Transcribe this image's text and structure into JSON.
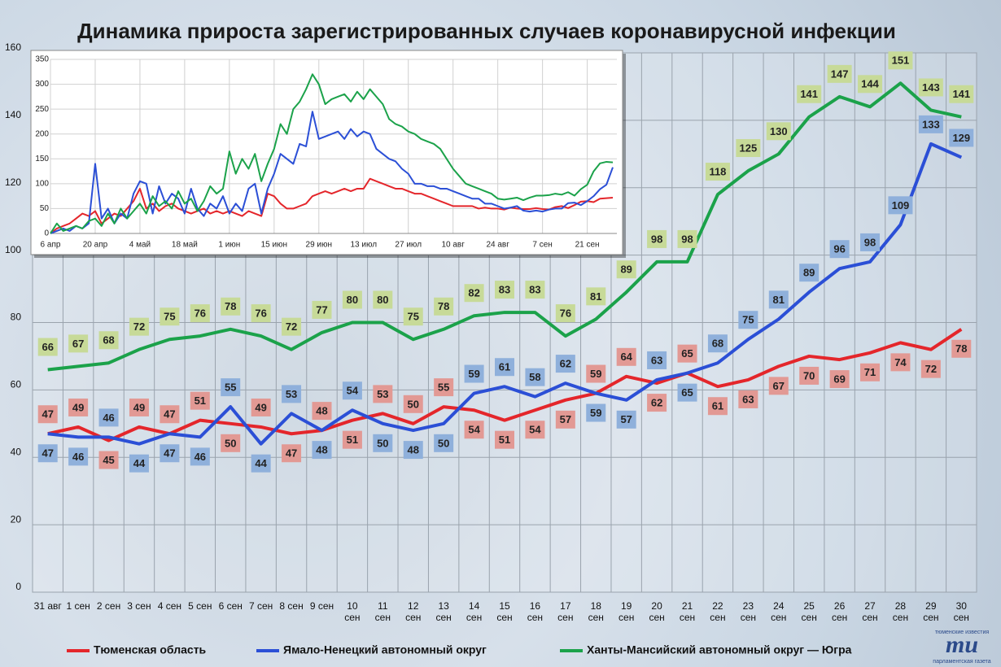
{
  "chart_data": [
    {
      "type": "line",
      "title": "Динамика прироста зарегистрированных случаев коронавирусной инфекции",
      "categories": [
        "31 авг",
        "1 сен",
        "2 сен",
        "3 сен",
        "4 сен",
        "5 сен",
        "6 сен",
        "7 сен",
        "8 сен",
        "9 сен",
        "10\nсен",
        "11\nсен",
        "12\nсен",
        "13\nсен",
        "14\nсен",
        "15\nсен",
        "16\nсен",
        "17\nсен",
        "18\nсен",
        "19\nсен",
        "20\nсен",
        "21\nсен",
        "22\nсен",
        "23\nсен",
        "24\nсен",
        "25\nсен",
        "26\nсен",
        "27\nсен",
        "28\nсен",
        "29\nсен",
        "30\nсен"
      ],
      "series": [
        {
          "name": "Тюменская область",
          "color": "#e4262b",
          "label_color": "#e29994",
          "values": [
            47,
            49,
            45,
            49,
            47,
            51,
            50,
            49,
            47,
            48,
            51,
            53,
            50,
            55,
            54,
            51,
            54,
            57,
            59,
            64,
            62,
            65,
            61,
            63,
            67,
            70,
            69,
            71,
            74,
            72,
            78
          ]
        },
        {
          "name": "Ямало-Ненецкий автономный округ",
          "color": "#2b4fd6",
          "label_color": "#8fb0db",
          "values": [
            47,
            46,
            46,
            44,
            47,
            46,
            55,
            44,
            53,
            48,
            54,
            50,
            48,
            50,
            59,
            61,
            58,
            62,
            59,
            57,
            63,
            65,
            68,
            75,
            81,
            89,
            96,
            98,
            109,
            133,
            129
          ]
        },
        {
          "name": "Ханты-Мансийский автономный округ — Югра",
          "color": "#1ba24a",
          "label_color": "#c7da98",
          "values": [
            66,
            67,
            68,
            72,
            75,
            76,
            78,
            76,
            72,
            77,
            80,
            80,
            75,
            78,
            82,
            83,
            83,
            76,
            81,
            89,
            98,
            98,
            118,
            125,
            130,
            141,
            147,
            144,
            151,
            143,
            141
          ]
        }
      ],
      "ylim": [
        0,
        160
      ],
      "yticks": [
        0,
        20,
        40,
        60,
        80,
        100,
        120,
        140,
        160
      ],
      "grid": true
    },
    {
      "type": "line",
      "x": [
        "6 апр",
        null,
        null,
        null,
        null,
        null,
        null,
        "20 апр",
        null,
        null,
        null,
        null,
        null,
        null,
        "4 май",
        null,
        null,
        null,
        null,
        null,
        null,
        "18 май",
        null,
        null,
        null,
        null,
        null,
        null,
        "1 июн",
        null,
        null,
        null,
        null,
        null,
        null,
        "15 июн",
        null,
        null,
        null,
        null,
        null,
        null,
        "29 июн",
        null,
        null,
        null,
        null,
        null,
        null,
        "13 июл",
        null,
        null,
        null,
        null,
        null,
        null,
        "27 июл",
        null,
        null,
        null,
        null,
        null,
        null,
        "10 авг",
        null,
        null,
        null,
        null,
        null,
        null,
        "24 авг",
        null,
        null,
        null,
        null,
        null,
        null,
        "7 сен",
        null,
        null,
        null,
        null,
        null,
        null,
        "21 сен",
        null,
        null,
        null,
        null
      ],
      "series": [
        {
          "color": "#e4262b",
          "values": [
            0,
            10,
            15,
            20,
            30,
            40,
            35,
            45,
            20,
            30,
            40,
            35,
            50,
            65,
            90,
            50,
            60,
            45,
            55,
            60,
            50,
            45,
            40,
            45,
            50,
            40,
            45,
            40,
            45,
            40,
            35,
            45,
            40,
            35,
            80,
            75,
            60,
            50,
            50,
            55,
            60,
            75,
            80,
            85,
            80,
            85,
            90,
            85,
            90,
            90,
            110,
            105,
            100,
            95,
            90,
            90,
            85,
            80,
            80,
            75,
            70,
            65,
            60,
            55,
            55,
            55,
            55,
            50,
            52,
            50,
            50,
            48,
            52,
            50,
            49,
            49,
            51,
            49,
            48,
            53,
            55,
            51,
            57,
            64,
            65,
            63,
            70,
            71,
            72
          ]
        },
        {
          "color": "#2b4fd6",
          "values": [
            0,
            5,
            10,
            5,
            15,
            10,
            20,
            140,
            30,
            50,
            20,
            40,
            30,
            80,
            105,
            100,
            40,
            95,
            60,
            80,
            70,
            40,
            90,
            50,
            35,
            60,
            50,
            75,
            40,
            60,
            45,
            90,
            100,
            40,
            90,
            120,
            160,
            150,
            140,
            180,
            175,
            245,
            190,
            195,
            200,
            205,
            190,
            210,
            195,
            205,
            200,
            170,
            160,
            150,
            145,
            130,
            120,
            100,
            100,
            95,
            95,
            90,
            90,
            85,
            80,
            75,
            70,
            70,
            60,
            60,
            55,
            50,
            52,
            55,
            46,
            44,
            46,
            44,
            48,
            50,
            50,
            61,
            62,
            57,
            65,
            75,
            89,
            98,
            133
          ]
        },
        {
          "color": "#1ba24a",
          "values": [
            0,
            20,
            5,
            10,
            15,
            10,
            25,
            30,
            15,
            40,
            20,
            50,
            30,
            45,
            60,
            40,
            75,
            55,
            65,
            50,
            85,
            60,
            70,
            45,
            65,
            95,
            80,
            90,
            165,
            120,
            150,
            130,
            160,
            105,
            140,
            170,
            220,
            200,
            250,
            265,
            290,
            320,
            300,
            260,
            270,
            275,
            280,
            265,
            285,
            270,
            290,
            275,
            260,
            230,
            220,
            215,
            205,
            200,
            190,
            185,
            180,
            170,
            150,
            130,
            115,
            100,
            95,
            90,
            85,
            80,
            70,
            68,
            70,
            72,
            67,
            72,
            76,
            76,
            77,
            80,
            78,
            83,
            76,
            89,
            98,
            125,
            141,
            144,
            143
          ]
        }
      ],
      "ylim": [
        0,
        350
      ],
      "yticks": [
        0,
        50,
        100,
        150,
        200,
        250,
        300,
        350
      ],
      "grid": true
    }
  ],
  "logo": {
    "mark": "mu",
    "top": "тюменские известия",
    "bottom": "парламентская газета"
  }
}
